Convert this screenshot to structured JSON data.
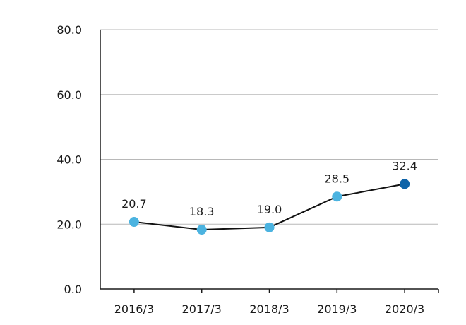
{
  "chart_data": {
    "type": "line",
    "title": "",
    "xlabel": "",
    "ylabel": "",
    "categories": [
      "2016/3",
      "2017/3",
      "2018/3",
      "2019/3",
      "2020/3"
    ],
    "values": [
      20.7,
      18.3,
      19.0,
      28.5,
      32.4
    ],
    "data_labels": [
      "20.7",
      "18.3",
      "19.0",
      "28.5",
      "32.4"
    ],
    "y_ticks": [
      "0.0",
      "20.0",
      "40.0",
      "60.0",
      "80.0"
    ],
    "ylim": [
      0,
      80
    ],
    "grid": true,
    "legend": "none",
    "colors": {
      "point": "#4bb3e0",
      "highlight_point": "#0e63a8",
      "line": "#111111",
      "grid": "#b8b8b8"
    },
    "highlight_index": 4
  }
}
